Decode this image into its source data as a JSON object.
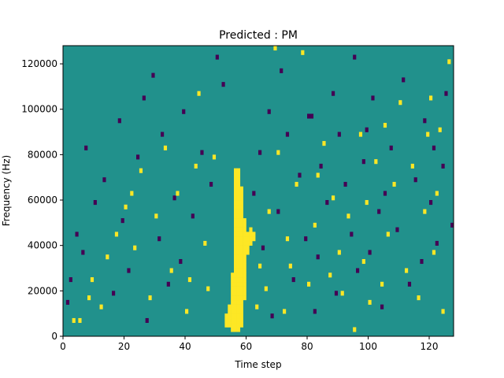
{
  "chart_data": {
    "type": "heatmap",
    "title": "Predicted : PM",
    "xlabel": "Time step",
    "ylabel": "Frequency (Hz)",
    "xlim": [
      0,
      128
    ],
    "ylim": [
      0,
      128000
    ],
    "x_ticks": [
      0,
      20,
      40,
      60,
      80,
      100,
      120
    ],
    "y_ticks": [
      0,
      20000,
      40000,
      60000,
      80000,
      100000,
      120000
    ],
    "y_tick_labels": [
      "0",
      "20000",
      "40000",
      "60000",
      "80000",
      "100000",
      "120000"
    ],
    "grid": false,
    "colormap": {
      "low": "#440154",
      "mid": "#21918c",
      "high": "#fde725"
    },
    "background_value": 0,
    "time_steps": 128,
    "frequency_bins": 64,
    "bin_width_hz": 2000,
    "high_cells": [
      [
        3,
        3
      ],
      [
        5,
        3
      ],
      [
        8,
        8
      ],
      [
        9,
        12
      ],
      [
        12,
        6
      ],
      [
        14,
        17
      ],
      [
        17,
        22
      ],
      [
        20,
        28
      ],
      [
        22,
        31
      ],
      [
        23,
        19
      ],
      [
        25,
        36
      ],
      [
        28,
        8
      ],
      [
        30,
        26
      ],
      [
        33,
        41
      ],
      [
        35,
        14
      ],
      [
        37,
        31
      ],
      [
        40,
        5
      ],
      [
        41,
        12
      ],
      [
        43,
        37
      ],
      [
        44,
        53
      ],
      [
        46,
        20
      ],
      [
        47,
        10
      ],
      [
        49,
        39
      ],
      [
        53,
        2
      ],
      [
        53,
        3
      ],
      [
        53,
        4
      ],
      [
        54,
        2
      ],
      [
        54,
        3
      ],
      [
        54,
        4
      ],
      [
        54,
        5
      ],
      [
        54,
        6
      ],
      [
        55,
        1
      ],
      [
        55,
        2
      ],
      [
        55,
        3
      ],
      [
        55,
        4
      ],
      [
        55,
        5
      ],
      [
        55,
        6
      ],
      [
        55,
        7
      ],
      [
        55,
        8
      ],
      [
        55,
        9
      ],
      [
        55,
        10
      ],
      [
        55,
        11
      ],
      [
        55,
        12
      ],
      [
        55,
        13
      ],
      [
        56,
        1
      ],
      [
        56,
        2
      ],
      [
        56,
        3
      ],
      [
        56,
        4
      ],
      [
        56,
        5
      ],
      [
        56,
        6
      ],
      [
        56,
        7
      ],
      [
        56,
        8
      ],
      [
        56,
        9
      ],
      [
        56,
        10
      ],
      [
        56,
        11
      ],
      [
        56,
        12
      ],
      [
        56,
        13
      ],
      [
        56,
        14
      ],
      [
        56,
        15
      ],
      [
        56,
        16
      ],
      [
        56,
        17
      ],
      [
        56,
        18
      ],
      [
        56,
        19
      ],
      [
        56,
        20
      ],
      [
        56,
        21
      ],
      [
        56,
        22
      ],
      [
        56,
        23
      ],
      [
        56,
        24
      ],
      [
        56,
        25
      ],
      [
        56,
        26
      ],
      [
        56,
        27
      ],
      [
        56,
        28
      ],
      [
        56,
        29
      ],
      [
        56,
        30
      ],
      [
        56,
        31
      ],
      [
        56,
        32
      ],
      [
        56,
        33
      ],
      [
        56,
        34
      ],
      [
        56,
        35
      ],
      [
        56,
        36
      ],
      [
        57,
        1
      ],
      [
        57,
        2
      ],
      [
        57,
        3
      ],
      [
        57,
        4
      ],
      [
        57,
        5
      ],
      [
        57,
        6
      ],
      [
        57,
        7
      ],
      [
        57,
        8
      ],
      [
        57,
        9
      ],
      [
        57,
        10
      ],
      [
        57,
        11
      ],
      [
        57,
        12
      ],
      [
        57,
        13
      ],
      [
        57,
        14
      ],
      [
        57,
        15
      ],
      [
        57,
        16
      ],
      [
        57,
        17
      ],
      [
        57,
        18
      ],
      [
        57,
        19
      ],
      [
        57,
        20
      ],
      [
        57,
        21
      ],
      [
        57,
        22
      ],
      [
        57,
        23
      ],
      [
        57,
        24
      ],
      [
        57,
        25
      ],
      [
        57,
        26
      ],
      [
        57,
        27
      ],
      [
        57,
        28
      ],
      [
        57,
        29
      ],
      [
        57,
        30
      ],
      [
        57,
        31
      ],
      [
        57,
        32
      ],
      [
        57,
        33
      ],
      [
        57,
        34
      ],
      [
        57,
        35
      ],
      [
        57,
        36
      ],
      [
        58,
        2
      ],
      [
        58,
        3
      ],
      [
        58,
        4
      ],
      [
        58,
        5
      ],
      [
        58,
        6
      ],
      [
        58,
        7
      ],
      [
        58,
        8
      ],
      [
        58,
        9
      ],
      [
        58,
        10
      ],
      [
        58,
        11
      ],
      [
        58,
        12
      ],
      [
        58,
        13
      ],
      [
        58,
        14
      ],
      [
        58,
        15
      ],
      [
        58,
        16
      ],
      [
        58,
        17
      ],
      [
        58,
        18
      ],
      [
        58,
        19
      ],
      [
        58,
        20
      ],
      [
        58,
        21
      ],
      [
        58,
        22
      ],
      [
        58,
        23
      ],
      [
        58,
        24
      ],
      [
        58,
        25
      ],
      [
        58,
        26
      ],
      [
        58,
        27
      ],
      [
        58,
        28
      ],
      [
        58,
        29
      ],
      [
        58,
        30
      ],
      [
        58,
        31
      ],
      [
        58,
        32
      ],
      [
        59,
        8
      ],
      [
        59,
        9
      ],
      [
        59,
        10
      ],
      [
        59,
        11
      ],
      [
        59,
        12
      ],
      [
        59,
        13
      ],
      [
        59,
        14
      ],
      [
        59,
        15
      ],
      [
        59,
        16
      ],
      [
        59,
        17
      ],
      [
        59,
        18
      ],
      [
        59,
        19
      ],
      [
        59,
        20
      ],
      [
        59,
        21
      ],
      [
        59,
        22
      ],
      [
        59,
        23
      ],
      [
        59,
        24
      ],
      [
        59,
        25
      ],
      [
        60,
        18
      ],
      [
        60,
        19
      ],
      [
        60,
        20
      ],
      [
        60,
        21
      ],
      [
        60,
        22
      ],
      [
        61,
        20
      ],
      [
        61,
        21
      ],
      [
        61,
        22
      ],
      [
        61,
        23
      ],
      [
        62,
        21
      ],
      [
        62,
        22
      ],
      [
        63,
        6
      ],
      [
        64,
        15
      ],
      [
        66,
        10
      ],
      [
        67,
        27
      ],
      [
        69,
        63
      ],
      [
        70,
        40
      ],
      [
        72,
        5
      ],
      [
        73,
        21
      ],
      [
        74,
        15
      ],
      [
        76,
        33
      ],
      [
        78,
        62
      ],
      [
        80,
        11
      ],
      [
        82,
        24
      ],
      [
        83,
        35
      ],
      [
        85,
        42
      ],
      [
        87,
        13
      ],
      [
        88,
        30
      ],
      [
        90,
        18
      ],
      [
        91,
        9
      ],
      [
        93,
        26
      ],
      [
        95,
        1
      ],
      [
        97,
        44
      ],
      [
        98,
        16
      ],
      [
        99,
        29
      ],
      [
        100,
        7
      ],
      [
        102,
        38
      ],
      [
        104,
        11
      ],
      [
        105,
        46
      ],
      [
        106,
        22
      ],
      [
        108,
        33
      ],
      [
        110,
        51
      ],
      [
        112,
        14
      ],
      [
        114,
        37
      ],
      [
        116,
        8
      ],
      [
        118,
        27
      ],
      [
        119,
        44
      ],
      [
        120,
        52
      ],
      [
        121,
        18
      ],
      [
        122,
        31
      ],
      [
        123,
        45
      ],
      [
        124,
        5
      ],
      [
        126,
        60
      ]
    ],
    "low_cells": [
      [
        1,
        7
      ],
      [
        2,
        12
      ],
      [
        4,
        22
      ],
      [
        6,
        18
      ],
      [
        7,
        41
      ],
      [
        10,
        29
      ],
      [
        13,
        34
      ],
      [
        16,
        9
      ],
      [
        18,
        47
      ],
      [
        19,
        25
      ],
      [
        21,
        14
      ],
      [
        24,
        39
      ],
      [
        26,
        52
      ],
      [
        27,
        3
      ],
      [
        29,
        57
      ],
      [
        31,
        21
      ],
      [
        32,
        44
      ],
      [
        34,
        11
      ],
      [
        36,
        30
      ],
      [
        38,
        16
      ],
      [
        39,
        49
      ],
      [
        42,
        26
      ],
      [
        45,
        40
      ],
      [
        48,
        33
      ],
      [
        50,
        61
      ],
      [
        52,
        55
      ],
      [
        62,
        31
      ],
      [
        64,
        40
      ],
      [
        65,
        19
      ],
      [
        67,
        49
      ],
      [
        68,
        4
      ],
      [
        70,
        27
      ],
      [
        71,
        58
      ],
      [
        73,
        44
      ],
      [
        75,
        12
      ],
      [
        77,
        35
      ],
      [
        79,
        21
      ],
      [
        80,
        48
      ],
      [
        81,
        48
      ],
      [
        82,
        5
      ],
      [
        83,
        17
      ],
      [
        84,
        37
      ],
      [
        86,
        29
      ],
      [
        88,
        53
      ],
      [
        89,
        9
      ],
      [
        90,
        44
      ],
      [
        92,
        33
      ],
      [
        94,
        22
      ],
      [
        95,
        61
      ],
      [
        96,
        14
      ],
      [
        98,
        38
      ],
      [
        99,
        45
      ],
      [
        100,
        18
      ],
      [
        101,
        52
      ],
      [
        103,
        27
      ],
      [
        104,
        6
      ],
      [
        105,
        31
      ],
      [
        107,
        41
      ],
      [
        109,
        23
      ],
      [
        111,
        56
      ],
      [
        113,
        11
      ],
      [
        115,
        34
      ],
      [
        117,
        16
      ],
      [
        118,
        47
      ],
      [
        120,
        29
      ],
      [
        121,
        41
      ],
      [
        122,
        20
      ],
      [
        124,
        37
      ],
      [
        125,
        53
      ],
      [
        127,
        24
      ]
    ]
  }
}
